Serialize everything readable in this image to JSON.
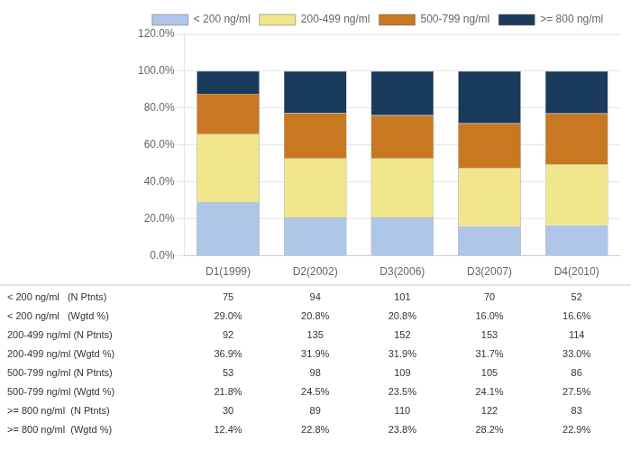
{
  "chart_data": {
    "type": "bar",
    "stacked": true,
    "categories": [
      "D1(1999)",
      "D2(2002)",
      "D3(2006)",
      "D3(2007)",
      "D4(2010)"
    ],
    "series": [
      {
        "name": "< 200 ng/ml",
        "color": "#aec6e8",
        "values": [
          29.0,
          20.8,
          20.8,
          16.0,
          16.6
        ]
      },
      {
        "name": "200-499 ng/ml",
        "color": "#f0e68c",
        "values": [
          36.9,
          31.9,
          31.9,
          31.7,
          33.0
        ]
      },
      {
        "name": "500-799 ng/ml",
        "color": "#c87820",
        "values": [
          21.8,
          24.5,
          23.5,
          24.1,
          27.5
        ]
      },
      {
        "name": ">= 800 ng/ml",
        "color": "#1a3a5c",
        "values": [
          12.4,
          22.8,
          23.8,
          28.2,
          22.9
        ]
      }
    ],
    "ylim": [
      0,
      120
    ],
    "yticks": [
      {
        "value": 0,
        "label": "0.0%"
      },
      {
        "value": 20,
        "label": "20.0%"
      },
      {
        "value": 40,
        "label": "40.0%"
      },
      {
        "value": 60,
        "label": "60.0%"
      },
      {
        "value": 80,
        "label": "80.0%"
      },
      {
        "value": 100,
        "label": "100.0%"
      },
      {
        "value": 120,
        "label": "120.0%"
      }
    ],
    "grid": "y",
    "legend": "top",
    "table_rows": [
      [
        "< 200 ng/ml   (N Ptnts)",
        "75",
        "94",
        "101",
        "70",
        "52"
      ],
      [
        "< 200 ng/ml   (Wgtd %)",
        "29.0%",
        "20.8%",
        "20.8%",
        "16.0%",
        "16.6%"
      ],
      [
        "200-499 ng/ml (N Ptnts)",
        "92",
        "135",
        "152",
        "153",
        "114"
      ],
      [
        "200-499 ng/ml (Wgtd %)",
        "36.9%",
        "31.9%",
        "31.9%",
        "31.7%",
        "33.0%"
      ],
      [
        "500-799 ng/ml (N Ptnts)",
        "53",
        "98",
        "109",
        "105",
        "86"
      ],
      [
        "500-799 ng/ml (Wgtd %)",
        "21.8%",
        "24.5%",
        "23.5%",
        "24.1%",
        "27.5%"
      ],
      [
        ">= 800 ng/ml  (N Ptnts)",
        "30",
        "89",
        "110",
        "122",
        "83"
      ],
      [
        ">= 800 ng/ml  (Wgtd %)",
        "12.4%",
        "22.8%",
        "23.8%",
        "28.2%",
        "22.9%"
      ]
    ]
  }
}
